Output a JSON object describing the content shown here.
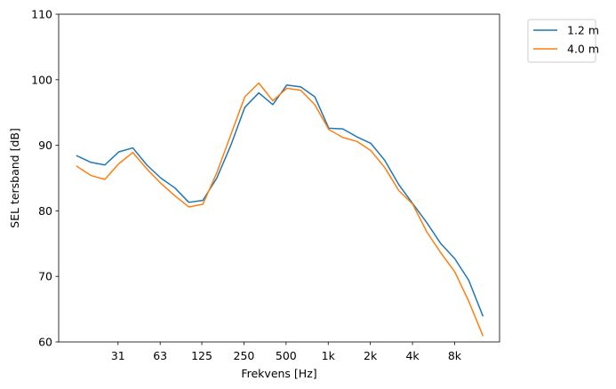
{
  "chart_data": {
    "type": "line",
    "xlabel": "Frekvens [Hz]",
    "ylabel": "SEL tersband [dB]",
    "ylim": [
      60,
      110
    ],
    "yticks": [
      60,
      70,
      80,
      90,
      100,
      110
    ],
    "x_scale": "log",
    "xticks": [
      {
        "value": 31.5,
        "label": "31"
      },
      {
        "value": 63,
        "label": "63"
      },
      {
        "value": 125,
        "label": "125"
      },
      {
        "value": 250,
        "label": "250"
      },
      {
        "value": 500,
        "label": "500"
      },
      {
        "value": 1000,
        "label": "1k"
      },
      {
        "value": 2000,
        "label": "2k"
      },
      {
        "value": 4000,
        "label": "4k"
      },
      {
        "value": 8000,
        "label": "8k"
      }
    ],
    "x": [
      16,
      20,
      25,
      31.5,
      40,
      50,
      63,
      80,
      100,
      125,
      160,
      200,
      250,
      315,
      400,
      500,
      630,
      800,
      1000,
      1250,
      1600,
      2000,
      2500,
      3150,
      4000,
      5000,
      6300,
      8000,
      10000,
      12500,
      16000
    ],
    "grid": false,
    "legend_position": "outside-top-right",
    "series": [
      {
        "name": "1.2 m",
        "color": "#1f77b4",
        "values": [
          88.4,
          87.4,
          87.0,
          89.0,
          89.6,
          87.0,
          85.0,
          83.5,
          81.3,
          81.6,
          85.0,
          90.0,
          95.8,
          98.0,
          96.2,
          99.2,
          98.9,
          97.4,
          92.6,
          92.5,
          91.3,
          90.3,
          87.7,
          84.0,
          81.1,
          78.2,
          75.0,
          72.7,
          69.4,
          64.0,
          null
        ]
      },
      {
        "name": "4.0 m",
        "color": "#ff7f0e",
        "values": [
          86.8,
          85.4,
          84.8,
          87.2,
          88.9,
          86.4,
          84.2,
          82.3,
          80.6,
          81.0,
          85.8,
          91.6,
          97.4,
          99.5,
          96.8,
          98.7,
          98.4,
          96.2,
          92.4,
          91.2,
          90.6,
          89.2,
          86.6,
          83.1,
          81.0,
          76.8,
          73.6,
          70.7,
          66.2,
          61.0,
          null
        ]
      }
    ]
  }
}
